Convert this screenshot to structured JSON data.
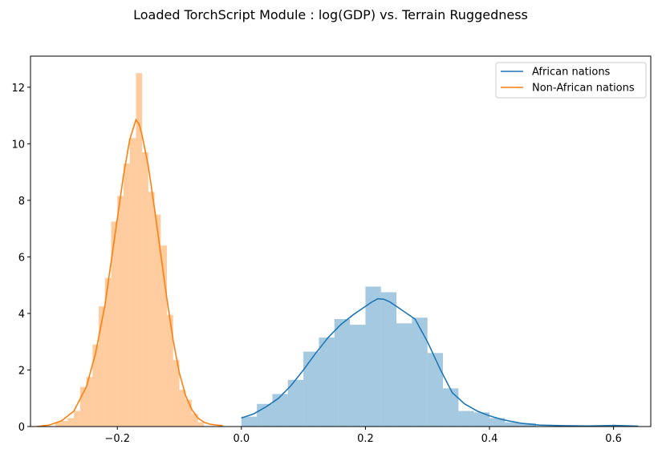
{
  "chart_data": {
    "type": "histogram+kde",
    "title": "Loaded TorchScript Module : log(GDP) vs. Terrain Ruggedness",
    "xlabel": "",
    "ylabel": "",
    "xlim": [
      -0.34,
      0.66
    ],
    "ylim": [
      0,
      13.1
    ],
    "x_ticks": [
      -0.2,
      0.0,
      0.2,
      0.4,
      0.6
    ],
    "x_tick_labels": [
      "−0.2",
      "0.0",
      "0.2",
      "0.4",
      "0.6"
    ],
    "y_ticks": [
      0,
      2,
      4,
      6,
      8,
      10,
      12
    ],
    "y_tick_labels": [
      "0",
      "2",
      "4",
      "6",
      "8",
      "10",
      "12"
    ],
    "grid": false,
    "legend_position": "top-right",
    "series": [
      {
        "name": "African nations",
        "color": "#1f77b4",
        "hist_alpha": 0.4,
        "bins": [
          {
            "x0": 0.0,
            "x1": 0.025,
            "y": 0.35
          },
          {
            "x0": 0.025,
            "x1": 0.05,
            "y": 0.8
          },
          {
            "x0": 0.05,
            "x1": 0.075,
            "y": 1.15
          },
          {
            "x0": 0.075,
            "x1": 0.1,
            "y": 1.65
          },
          {
            "x0": 0.1,
            "x1": 0.125,
            "y": 2.65
          },
          {
            "x0": 0.125,
            "x1": 0.15,
            "y": 3.15
          },
          {
            "x0": 0.15,
            "x1": 0.175,
            "y": 3.8
          },
          {
            "x0": 0.175,
            "x1": 0.2,
            "y": 3.6
          },
          {
            "x0": 0.2,
            "x1": 0.225,
            "y": 4.95
          },
          {
            "x0": 0.225,
            "x1": 0.25,
            "y": 4.75
          },
          {
            "x0": 0.25,
            "x1": 0.275,
            "y": 3.65
          },
          {
            "x0": 0.275,
            "x1": 0.3,
            "y": 3.85
          },
          {
            "x0": 0.3,
            "x1": 0.325,
            "y": 2.6
          },
          {
            "x0": 0.325,
            "x1": 0.35,
            "y": 1.35
          },
          {
            "x0": 0.35,
            "x1": 0.375,
            "y": 0.55
          },
          {
            "x0": 0.375,
            "x1": 0.4,
            "y": 0.5
          },
          {
            "x0": 0.4,
            "x1": 0.425,
            "y": 0.3
          },
          {
            "x0": 0.425,
            "x1": 0.45,
            "y": 0.15
          },
          {
            "x0": 0.45,
            "x1": 0.475,
            "y": 0.12
          }
        ],
        "kde": {
          "x": [
            0.0,
            0.02,
            0.04,
            0.06,
            0.08,
            0.1,
            0.12,
            0.14,
            0.16,
            0.18,
            0.2,
            0.21,
            0.22,
            0.23,
            0.24,
            0.26,
            0.28,
            0.3,
            0.32,
            0.34,
            0.36,
            0.38,
            0.4,
            0.42,
            0.45,
            0.48,
            0.52,
            0.56,
            0.6,
            0.64
          ],
          "y": [
            0.3,
            0.45,
            0.7,
            1.0,
            1.45,
            2.0,
            2.6,
            3.15,
            3.6,
            3.95,
            4.25,
            4.4,
            4.52,
            4.5,
            4.4,
            4.1,
            3.8,
            3.0,
            2.05,
            1.2,
            0.8,
            0.55,
            0.38,
            0.25,
            0.12,
            0.05,
            0.03,
            0.02,
            0.04,
            0.01
          ]
        }
      },
      {
        "name": "Non-African nations",
        "color": "#ff7f0e",
        "hist_alpha": 0.4,
        "bins": [
          {
            "x0": -0.3,
            "x1": -0.29,
            "y": 0.15
          },
          {
            "x0": -0.29,
            "x1": -0.28,
            "y": 0.2
          },
          {
            "x0": -0.28,
            "x1": -0.27,
            "y": 0.3
          },
          {
            "x0": -0.27,
            "x1": -0.26,
            "y": 0.55
          },
          {
            "x0": -0.26,
            "x1": -0.25,
            "y": 1.4
          },
          {
            "x0": -0.25,
            "x1": -0.24,
            "y": 1.75
          },
          {
            "x0": -0.24,
            "x1": -0.23,
            "y": 2.9
          },
          {
            "x0": -0.23,
            "x1": -0.22,
            "y": 4.25
          },
          {
            "x0": -0.22,
            "x1": -0.21,
            "y": 5.25
          },
          {
            "x0": -0.21,
            "x1": -0.2,
            "y": 7.25
          },
          {
            "x0": -0.2,
            "x1": -0.19,
            "y": 8.15
          },
          {
            "x0": -0.19,
            "x1": -0.18,
            "y": 9.3
          },
          {
            "x0": -0.18,
            "x1": -0.17,
            "y": 10.2
          },
          {
            "x0": -0.17,
            "x1": -0.16,
            "y": 12.5
          },
          {
            "x0": -0.16,
            "x1": -0.15,
            "y": 9.7
          },
          {
            "x0": -0.15,
            "x1": -0.14,
            "y": 8.3
          },
          {
            "x0": -0.14,
            "x1": -0.13,
            "y": 7.5
          },
          {
            "x0": -0.13,
            "x1": -0.12,
            "y": 6.4
          },
          {
            "x0": -0.12,
            "x1": -0.11,
            "y": 3.95
          },
          {
            "x0": -0.11,
            "x1": -0.1,
            "y": 2.35
          },
          {
            "x0": -0.1,
            "x1": -0.09,
            "y": 1.3
          },
          {
            "x0": -0.09,
            "x1": -0.08,
            "y": 0.95
          },
          {
            "x0": -0.08,
            "x1": -0.07,
            "y": 0.45
          },
          {
            "x0": -0.07,
            "x1": -0.06,
            "y": 0.15
          }
        ],
        "kde": {
          "x": [
            -0.33,
            -0.31,
            -0.29,
            -0.27,
            -0.25,
            -0.235,
            -0.22,
            -0.205,
            -0.19,
            -0.18,
            -0.17,
            -0.165,
            -0.16,
            -0.15,
            -0.14,
            -0.13,
            -0.12,
            -0.11,
            -0.1,
            -0.09,
            -0.08,
            -0.07,
            -0.06,
            -0.05,
            -0.04,
            -0.03
          ],
          "y": [
            0.0,
            0.05,
            0.2,
            0.55,
            1.4,
            2.6,
            4.3,
            6.6,
            8.9,
            10.15,
            10.85,
            10.7,
            10.3,
            9.2,
            7.7,
            6.1,
            4.5,
            3.05,
            1.9,
            1.1,
            0.6,
            0.3,
            0.15,
            0.08,
            0.05,
            0.03
          ]
        }
      }
    ]
  }
}
